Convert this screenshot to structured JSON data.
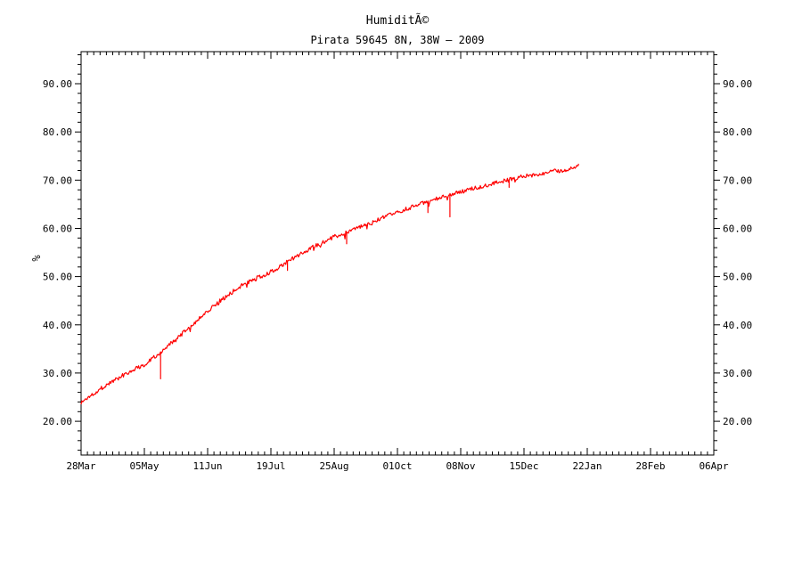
{
  "chart_data": {
    "type": "line",
    "title": "HumiditÃ©",
    "subtitle": "Pirata 59645 8N, 38W — 2009",
    "ylabel": "%",
    "background_color": "#ffffff",
    "axis_color": "#000000",
    "line_color": "#ff0000",
    "grid": false,
    "legend": false,
    "ylim": [
      13.0,
      96.7
    ],
    "y_tick_values": [
      20,
      30,
      40,
      50,
      60,
      70,
      80,
      90
    ],
    "y_tick_labels": [
      "20.00",
      "30.00",
      "40.00",
      "50.00",
      "60.00",
      "70.00",
      "80.00",
      "90.00"
    ],
    "y_minor_step": 2,
    "y_minor_range": [
      14,
      96
    ],
    "y_axis_sides": "both",
    "x_tick_labels": [
      "28Mar",
      "05May",
      "11Jun",
      "19Jul",
      "25Aug",
      "01Oct",
      "08Nov",
      "15Dec",
      "22Jan",
      "28Feb",
      "06Apr"
    ],
    "x_span_days": 374,
    "x_minor_per_major": 10,
    "series": [
      {
        "name": "humidity_pct",
        "color": "#ff0000",
        "end_day": 294,
        "points_day_value": [
          [
            0,
            23.8
          ],
          [
            5,
            25.2
          ],
          [
            10,
            26.4
          ],
          [
            19,
            28.4
          ],
          [
            28,
            30.2
          ],
          [
            38,
            31.9
          ],
          [
            47,
            34.4
          ],
          [
            56,
            36.9
          ],
          [
            66,
            40.1
          ],
          [
            75,
            43.0
          ],
          [
            85,
            45.7
          ],
          [
            94,
            48.0
          ],
          [
            104,
            49.7
          ],
          [
            113,
            51.1
          ],
          [
            122,
            53.1
          ],
          [
            131,
            55.0
          ],
          [
            141,
            56.8
          ],
          [
            150,
            58.3
          ],
          [
            160,
            59.6
          ],
          [
            169,
            60.8
          ],
          [
            178,
            62.1
          ],
          [
            187,
            63.4
          ],
          [
            197,
            64.6
          ],
          [
            206,
            65.7
          ],
          [
            216,
            66.7
          ],
          [
            225,
            67.6
          ],
          [
            234,
            68.5
          ],
          [
            243,
            69.3
          ],
          [
            253,
            70.1
          ],
          [
            262,
            70.8
          ],
          [
            272,
            71.4
          ],
          [
            281,
            71.9
          ],
          [
            288,
            72.2
          ],
          [
            292,
            72.5
          ],
          [
            294,
            73.0
          ]
        ],
        "values_at_x_ticks": {
          "28Mar": 23.8,
          "05May": 31.9,
          "11Jun": 43.0,
          "19Jul": 51.1,
          "25Aug": 58.3,
          "01Oct": 63.4,
          "08Nov": 67.6,
          "15Dec": 70.6,
          "end_~16Jan": 72.5
        },
        "downward_spikes_day_delta": [
          [
            47,
            -5.6
          ],
          [
            122,
            -1.8
          ],
          [
            157,
            -2.4
          ],
          [
            205,
            -2.3
          ],
          [
            218,
            -4.5
          ],
          [
            253,
            -1.6
          ]
        ],
        "noise_amplitude": 0.45,
        "seed": 1337
      }
    ]
  }
}
